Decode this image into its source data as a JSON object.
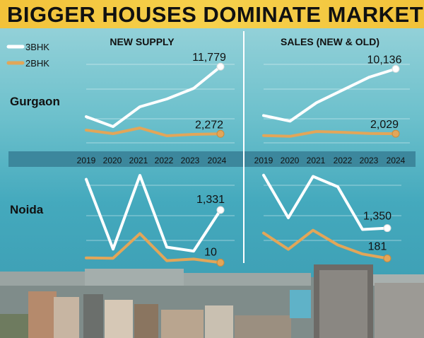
{
  "title": "BIGGER HOUSES DOMINATE MARKET",
  "colors": {
    "three_bhk": "#ffffff",
    "two_bhk": "#e2a659",
    "title_bg": "#f2c23a"
  },
  "legend": [
    {
      "label": "3BHK",
      "color": "#ffffff"
    },
    {
      "label": "2BHK",
      "color": "#e2a659"
    }
  ],
  "panel_titles": [
    "NEW SUPPLY",
    "SALES (NEW & OLD)"
  ],
  "city_labels": [
    "Gurgaon",
    "Noida"
  ],
  "chart_data": [
    {
      "type": "line",
      "title": "NEW SUPPLY",
      "city": "Gurgaon",
      "x": [
        "2019",
        "2020",
        "2021",
        "2022",
        "2023",
        "2024"
      ],
      "ylim": [
        0,
        13000
      ],
      "series": [
        {
          "name": "3BHK",
          "values": [
            4700,
            3300,
            6100,
            7200,
            8700,
            11779
          ],
          "end_label": "11,779"
        },
        {
          "name": "2BHK",
          "values": [
            2800,
            2300,
            3100,
            2000,
            2200,
            2272
          ],
          "end_label": "2,272"
        }
      ]
    },
    {
      "type": "line",
      "title": "SALES (NEW & OLD)",
      "city": "Gurgaon",
      "x": [
        "2019",
        "2020",
        "2021",
        "2022",
        "2023",
        "2024"
      ],
      "ylim": [
        0,
        11500
      ],
      "series": [
        {
          "name": "3BHK",
          "values": [
            4300,
            3600,
            5900,
            7500,
            9100,
            10136
          ],
          "end_label": "10,136"
        },
        {
          "name": "2BHK",
          "values": [
            1800,
            1700,
            2300,
            2200,
            2050,
            2029
          ],
          "end_label": "2,029"
        }
      ]
    },
    {
      "type": "line",
      "title": "NEW SUPPLY",
      "city": "Noida",
      "x": [
        "2019",
        "2020",
        "2021",
        "2022",
        "2023",
        "2024"
      ],
      "ylim": [
        0,
        2200
      ],
      "series": [
        {
          "name": "3BHK",
          "values": [
            2100,
            350,
            2200,
            400,
            300,
            1331
          ],
          "end_label": "1,331"
        },
        {
          "name": "2BHK",
          "values": [
            130,
            120,
            740,
            60,
            100,
            10
          ],
          "end_label": "10"
        }
      ]
    },
    {
      "type": "line",
      "title": "SALES (NEW & OLD)",
      "city": "Noida",
      "x": [
        "2019",
        "2020",
        "2021",
        "2022",
        "2023",
        "2024"
      ],
      "ylim": [
        0,
        3500
      ],
      "series": [
        {
          "name": "3BHK",
          "values": [
            3400,
            1750,
            3350,
            2950,
            1300,
            1350
          ],
          "end_label": "1,350"
        },
        {
          "name": "2BHK",
          "values": [
            1160,
            530,
            1270,
            700,
            350,
            181
          ],
          "end_label": "181"
        }
      ]
    }
  ]
}
